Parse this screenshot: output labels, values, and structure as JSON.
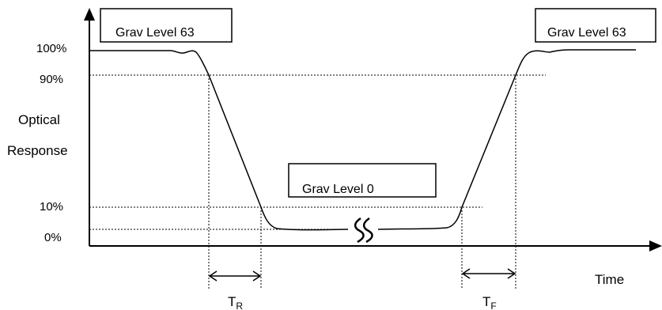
{
  "diagram": {
    "y_ticks": [
      "100%",
      "90%",
      "10%",
      "0%"
    ],
    "y_axis_label_line1": "Optical",
    "y_axis_label_line2": "Response",
    "x_axis_label": "Time",
    "boxes": [
      "Grav Level 63",
      "Grav Level 0",
      "Grav Level 63"
    ],
    "rise_label": {
      "main": "T",
      "sub": "R"
    },
    "fall_label": {
      "main": "T",
      "sub": "F"
    }
  }
}
